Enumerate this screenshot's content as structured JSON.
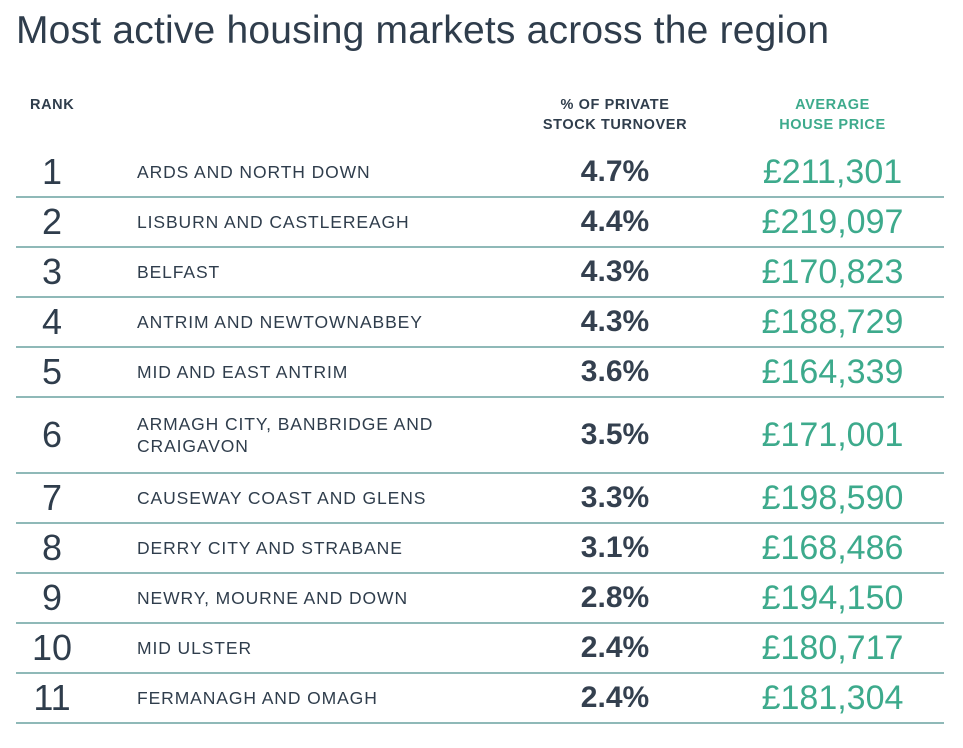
{
  "title": "Most active housing markets across the region",
  "headers": {
    "rank": "RANK",
    "turnover_line1": "% OF PRIVATE",
    "turnover_line2": "STOCK TURNOVER",
    "price_line1": "AVERAGE",
    "price_line2": "HOUSE PRICE"
  },
  "colors": {
    "text": "#2f3d4c",
    "accent": "#3daa8c",
    "divider": "#8fb9b8"
  },
  "rows": [
    {
      "rank": "1",
      "area": "ARDS AND NORTH DOWN",
      "turnover": "4.7%",
      "price": "£211,301"
    },
    {
      "rank": "2",
      "area": "LISBURN AND CASTLEREAGH",
      "turnover": "4.4%",
      "price": "£219,097"
    },
    {
      "rank": "3",
      "area": "BELFAST",
      "turnover": "4.3%",
      "price": "£170,823"
    },
    {
      "rank": "4",
      "area": "ANTRIM AND NEWTOWNABBEY",
      "turnover": "4.3%",
      "price": "£188,729"
    },
    {
      "rank": "5",
      "area": "MID AND EAST ANTRIM",
      "turnover": "3.6%",
      "price": "£164,339"
    },
    {
      "rank": "6",
      "area": "ARMAGH CITY, BANBRIDGE AND CRAIGAVON",
      "turnover": "3.5%",
      "price": "£171,001"
    },
    {
      "rank": "7",
      "area": "CAUSEWAY COAST AND GLENS",
      "turnover": "3.3%",
      "price": "£198,590"
    },
    {
      "rank": "8",
      "area": "DERRY CITY AND STRABANE",
      "turnover": "3.1%",
      "price": "£168,486"
    },
    {
      "rank": "9",
      "area": "NEWRY, MOURNE AND DOWN",
      "turnover": "2.8%",
      "price": "£194,150"
    },
    {
      "rank": "10",
      "area": "MID ULSTER",
      "turnover": "2.4%",
      "price": "£180,717"
    },
    {
      "rank": "11",
      "area": "FERMANAGH AND OMAGH",
      "turnover": "2.4%",
      "price": "£181,304"
    }
  ]
}
